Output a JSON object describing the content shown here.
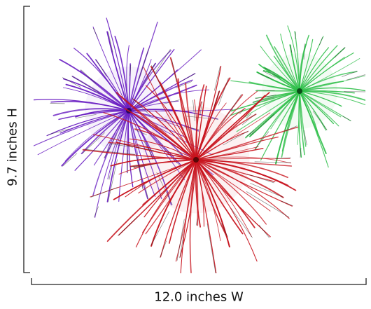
{
  "dimensions": {
    "height_label": "9.7 inches H",
    "width_label": "12.0 inches W"
  },
  "artwork": {
    "subject": "fireworks",
    "bursts": [
      {
        "name": "purple-burst",
        "color": "#6a1fc2",
        "core": "#2a0a5c",
        "rays": 70,
        "seed": 11
      },
      {
        "name": "green-burst",
        "color": "#2fbf4a",
        "core": "#0d4d1a",
        "rays": 60,
        "seed": 23
      },
      {
        "name": "red-burst",
        "color": "#c8141e",
        "core": "#5a0808",
        "rays": 85,
        "seed": 37
      }
    ],
    "line_color": "#222222"
  }
}
